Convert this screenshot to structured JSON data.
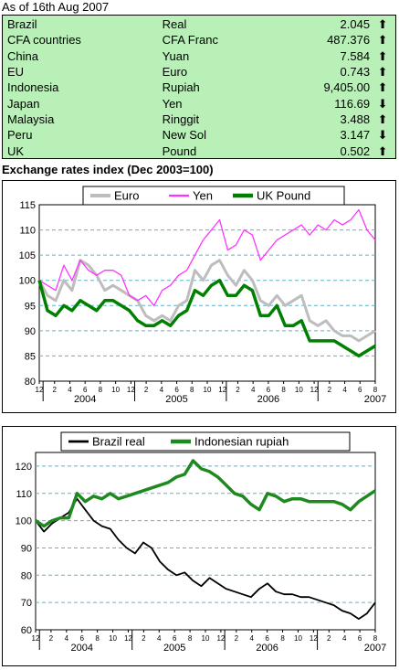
{
  "as_of": "As of 16th Aug 2007",
  "rates": [
    {
      "country": "Brazil",
      "currency": "Real",
      "value": "2.045",
      "arrow": "⬆"
    },
    {
      "country": "CFA countries",
      "currency": "CFA Franc",
      "value": "487.376",
      "arrow": "⬆"
    },
    {
      "country": "China",
      "currency": "Yuan",
      "value": "7.584",
      "arrow": "⬆"
    },
    {
      "country": "EU",
      "currency": "Euro",
      "value": "0.743",
      "arrow": "⬆"
    },
    {
      "country": "Indonesia",
      "currency": "Rupiah",
      "value": "9,405.00",
      "arrow": "⬆"
    },
    {
      "country": "Japan",
      "currency": "Yen",
      "value": "116.69",
      "arrow": "⬇"
    },
    {
      "country": "Malaysia",
      "currency": "Ringgit",
      "value": "3.488",
      "arrow": "⬆"
    },
    {
      "country": "Peru",
      "currency": "New Sol",
      "value": "3.147",
      "arrow": "⬇"
    },
    {
      "country": "UK",
      "currency": "Pound",
      "value": "0.502",
      "arrow": "⬆"
    }
  ],
  "section_title": "Exchange rates index (Dec 2003=100)",
  "colors": {
    "panel_bg": "#b8f0b8",
    "euro": "#bdbdbd",
    "yen": "#ff33ff",
    "pound": "#008000",
    "real": "#000000",
    "rupiah": "#1e8a1e",
    "gridline": "#5fb3c8"
  },
  "chart_data": [
    {
      "type": "line",
      "ylim": [
        80,
        115
      ],
      "yticks": [
        80,
        85,
        90,
        95,
        100,
        105,
        110,
        115
      ],
      "month_ticks": [
        "12",
        "2",
        "4",
        "6",
        "8",
        "10",
        "12",
        "2",
        "4",
        "6",
        "8",
        "10",
        "12",
        "2",
        "4",
        "6",
        "8",
        "10",
        "12",
        "2",
        "4",
        "6",
        "8"
      ],
      "year_labels": [
        {
          "label": "2004",
          "month": 6
        },
        {
          "label": "2005",
          "month": 18
        },
        {
          "label": "2006",
          "month": 30
        },
        {
          "label": "2007",
          "month": 44
        }
      ],
      "legend_position": "top",
      "series": [
        {
          "name": "Euro",
          "color_key": "euro",
          "values": [
            100,
            97,
            96,
            100,
            98,
            104,
            103,
            101,
            98,
            99,
            98,
            97,
            96,
            93,
            92,
            93,
            92,
            95,
            96,
            102,
            100,
            103,
            104,
            101,
            99,
            102,
            100,
            96,
            95,
            97,
            95,
            96,
            97,
            92,
            91,
            92,
            90,
            89,
            89,
            88,
            89,
            90
          ]
        },
        {
          "name": "Yen",
          "color_key": "yen",
          "values": [
            100,
            99,
            98,
            103,
            100,
            104,
            102,
            101,
            102,
            102,
            101,
            97,
            96,
            97,
            95,
            98,
            99,
            101,
            102,
            105,
            108,
            110,
            112,
            106,
            107,
            110,
            109,
            104,
            106,
            108,
            109,
            110,
            111,
            109,
            111,
            110,
            112,
            111,
            112,
            114,
            110,
            108
          ]
        },
        {
          "name": "UK Pound",
          "color_key": "pound",
          "values": [
            100,
            94,
            93,
            95,
            94,
            96,
            95,
            94,
            96,
            96,
            95,
            94,
            92,
            91,
            91,
            92,
            91,
            93,
            94,
            98,
            97,
            99,
            100,
            97,
            97,
            99,
            98,
            93,
            93,
            95,
            91,
            91,
            92,
            88,
            88,
            88,
            88,
            87,
            86,
            85,
            86,
            87
          ]
        }
      ]
    },
    {
      "type": "line",
      "ylim": [
        60,
        125
      ],
      "yticks": [
        60,
        70,
        80,
        90,
        100,
        110,
        120
      ],
      "month_ticks": [
        "12",
        "2",
        "4",
        "6",
        "8",
        "10",
        "12",
        "2",
        "4",
        "6",
        "8",
        "10",
        "12",
        "2",
        "4",
        "6",
        "8",
        "10",
        "12",
        "2",
        "4",
        "6",
        "8"
      ],
      "year_labels": [
        {
          "label": "2004",
          "month": 6
        },
        {
          "label": "2005",
          "month": 18
        },
        {
          "label": "2006",
          "month": 30
        },
        {
          "label": "2007",
          "month": 44
        }
      ],
      "legend_position": "top",
      "series": [
        {
          "name": "Brazil real",
          "color_key": "real",
          "values": [
            100,
            96,
            99,
            101,
            103,
            108,
            104,
            100,
            98,
            97,
            93,
            90,
            88,
            92,
            90,
            85,
            82,
            80,
            81,
            78,
            76,
            79,
            77,
            75,
            74,
            73,
            72,
            75,
            77,
            74,
            73,
            73,
            72,
            72,
            71,
            70,
            69,
            67,
            66,
            64,
            66,
            70
          ]
        },
        {
          "name": "Indonesian rupiah",
          "color_key": "rupiah",
          "values": [
            100,
            98,
            100,
            101,
            101,
            110,
            107,
            109,
            108,
            110,
            108,
            109,
            110,
            111,
            112,
            113,
            114,
            116,
            117,
            122,
            119,
            118,
            116,
            113,
            110,
            109,
            106,
            104,
            110,
            109,
            107,
            108,
            108,
            107,
            107,
            107,
            107,
            106,
            104,
            107,
            109,
            111
          ]
        }
      ]
    }
  ]
}
